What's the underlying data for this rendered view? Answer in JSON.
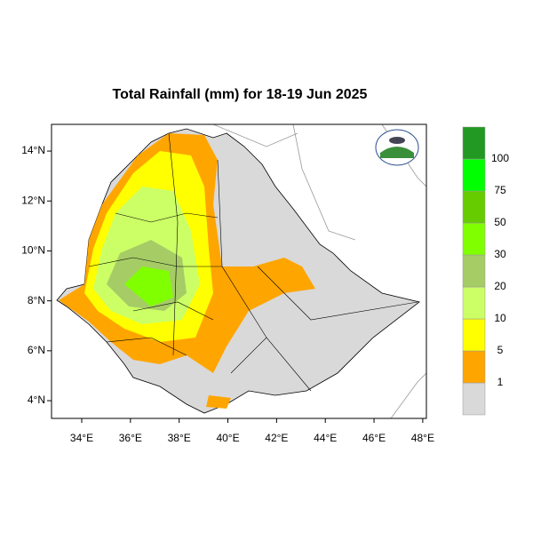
{
  "chart_data": {
    "type": "map",
    "title": "Total Rainfall (mm) for 18-19 Jun 2025",
    "xlim": [
      32.76,
      48.15
    ],
    "ylim": [
      3.29,
      15.07
    ],
    "xticks": [
      {
        "value": 34,
        "label": "34°E"
      },
      {
        "value": 36,
        "label": "36°E"
      },
      {
        "value": 38,
        "label": "38°E"
      },
      {
        "value": 40,
        "label": "40°E"
      },
      {
        "value": 42,
        "label": "42°E"
      },
      {
        "value": 44,
        "label": "44°E"
      },
      {
        "value": 46,
        "label": "46°E"
      },
      {
        "value": 48,
        "label": "48°E"
      }
    ],
    "yticks": [
      {
        "value": 4,
        "label": "4°N"
      },
      {
        "value": 6,
        "label": "6°N"
      },
      {
        "value": 8,
        "label": "8°N"
      },
      {
        "value": 10,
        "label": "10°N"
      },
      {
        "value": 12,
        "label": "12°N"
      },
      {
        "value": 14,
        "label": "14°N"
      }
    ],
    "legend": {
      "levels": [
        1,
        5,
        10,
        20,
        30,
        50,
        75,
        100
      ],
      "colors": [
        "#d9d9d9",
        "#ffa500",
        "#ffff00",
        "#ccff66",
        "#a6cc66",
        "#80ff00",
        "#66cc00",
        "#00ff00",
        "#229922"
      ]
    }
  }
}
